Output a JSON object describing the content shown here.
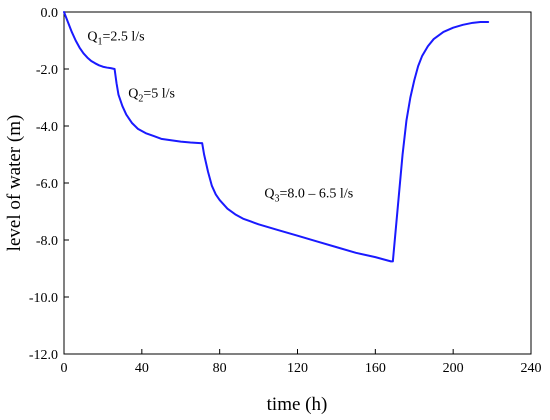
{
  "chart_data": {
    "type": "line",
    "xlabel": "time (h)",
    "ylabel": "level of water (m)",
    "xlim": [
      0,
      240
    ],
    "ylim": [
      -12.0,
      0.0
    ],
    "x_ticks": [
      "0",
      "40",
      "80",
      "120",
      "160",
      "200",
      "240"
    ],
    "y_ticks": [
      "0.0",
      "-2.0",
      "-4.0",
      "-6.0",
      "-8.0",
      "-10.0",
      "-12.0"
    ],
    "grid": false,
    "series": [
      {
        "color": "#1a1aff",
        "points": [
          [
            0,
            0.0
          ],
          [
            2,
            -0.35
          ],
          [
            4,
            -0.7
          ],
          [
            6,
            -1.0
          ],
          [
            8,
            -1.25
          ],
          [
            10,
            -1.45
          ],
          [
            12,
            -1.6
          ],
          [
            14,
            -1.72
          ],
          [
            16,
            -1.8
          ],
          [
            18,
            -1.87
          ],
          [
            20,
            -1.92
          ],
          [
            22,
            -1.95
          ],
          [
            24,
            -1.97
          ],
          [
            26,
            -2.0
          ],
          [
            27,
            -2.5
          ],
          [
            28,
            -2.9
          ],
          [
            30,
            -3.3
          ],
          [
            32,
            -3.6
          ],
          [
            35,
            -3.9
          ],
          [
            38,
            -4.1
          ],
          [
            42,
            -4.25
          ],
          [
            46,
            -4.35
          ],
          [
            50,
            -4.45
          ],
          [
            55,
            -4.5
          ],
          [
            60,
            -4.55
          ],
          [
            65,
            -4.58
          ],
          [
            70,
            -4.6
          ],
          [
            71,
            -4.6
          ],
          [
            72,
            -5.0
          ],
          [
            74,
            -5.6
          ],
          [
            76,
            -6.1
          ],
          [
            78,
            -6.4
          ],
          [
            80,
            -6.6
          ],
          [
            84,
            -6.9
          ],
          [
            88,
            -7.1
          ],
          [
            92,
            -7.25
          ],
          [
            96,
            -7.35
          ],
          [
            100,
            -7.45
          ],
          [
            110,
            -7.65
          ],
          [
            120,
            -7.85
          ],
          [
            130,
            -8.05
          ],
          [
            140,
            -8.25
          ],
          [
            150,
            -8.45
          ],
          [
            160,
            -8.6
          ],
          [
            168,
            -8.75
          ],
          [
            169,
            -8.75
          ],
          [
            170,
            -8.0
          ],
          [
            172,
            -6.5
          ],
          [
            174,
            -5.0
          ],
          [
            176,
            -3.8
          ],
          [
            178,
            -3.0
          ],
          [
            180,
            -2.4
          ],
          [
            182,
            -1.9
          ],
          [
            184,
            -1.55
          ],
          [
            187,
            -1.2
          ],
          [
            190,
            -0.95
          ],
          [
            195,
            -0.7
          ],
          [
            200,
            -0.55
          ],
          [
            205,
            -0.45
          ],
          [
            210,
            -0.38
          ],
          [
            214,
            -0.35
          ],
          [
            218,
            -0.35
          ]
        ]
      }
    ],
    "annotations": [
      {
        "base": "Q",
        "sub": "1",
        "rest": "=2.5 l/s",
        "x": 12,
        "y": -1.0
      },
      {
        "base": "Q",
        "sub": "2",
        "rest": "=5 l/s",
        "x": 33,
        "y": -3.0
      },
      {
        "base": "Q",
        "sub": "3",
        "rest": "=8.0 – 6.5 l/s",
        "x": 103,
        "y": -6.5
      }
    ]
  }
}
